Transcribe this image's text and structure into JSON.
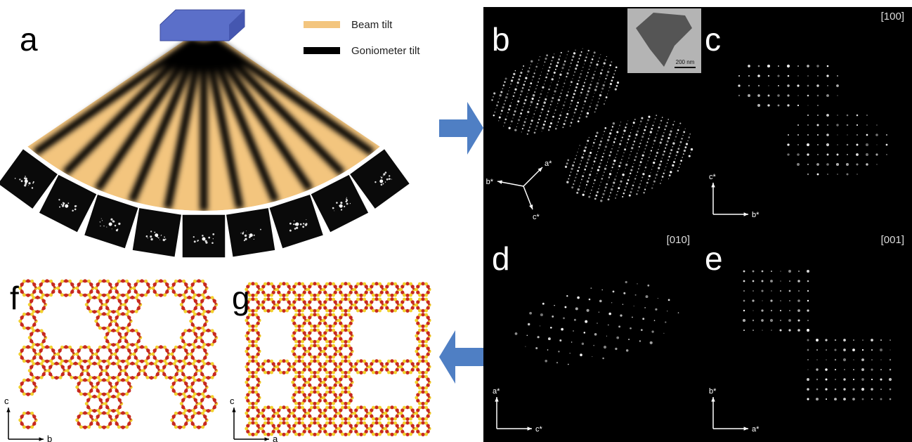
{
  "panels": {
    "a": {
      "label": "a",
      "legend": [
        {
          "label": "Beam tilt",
          "color": "#f3c57e"
        },
        {
          "label": "Goniometer tilt",
          "color": "#000000"
        }
      ]
    },
    "b": {
      "label": "b",
      "scale_bar": "200 nm",
      "axes": [
        "a*",
        "b*",
        "c*"
      ]
    },
    "c": {
      "label": "c",
      "zone": "[100]",
      "axes": [
        "c*",
        "b*"
      ]
    },
    "d": {
      "label": "d",
      "zone": "[010]",
      "axes": [
        "a*",
        "c*"
      ]
    },
    "e": {
      "label": "e",
      "zone": "[001]",
      "axes": [
        "b*",
        "a*"
      ]
    },
    "f": {
      "label": "f",
      "axes": [
        "c",
        "b"
      ]
    },
    "g": {
      "label": "g",
      "axes": [
        "c",
        "a"
      ]
    }
  }
}
